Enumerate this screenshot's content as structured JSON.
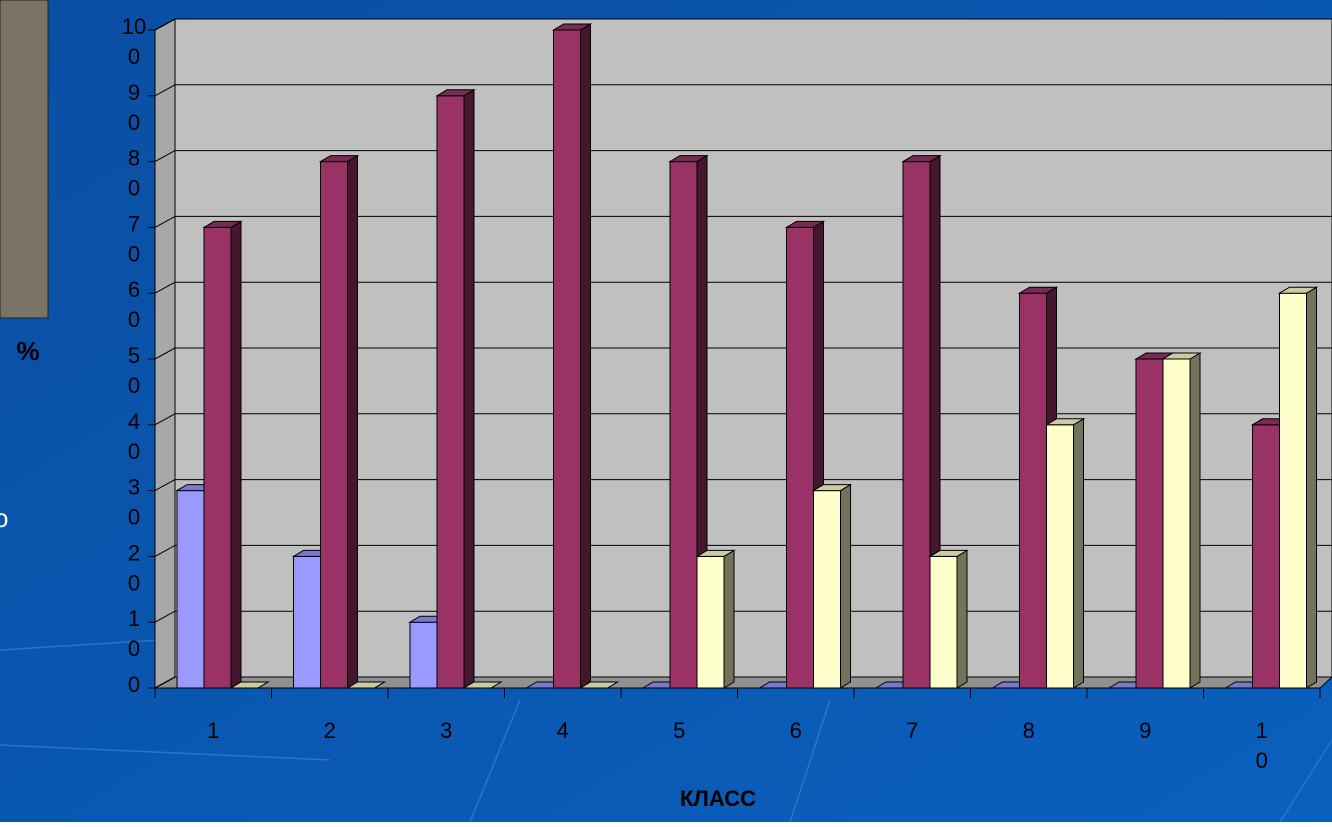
{
  "chart_data": {
    "type": "bar3d",
    "x_label": "КЛАСС",
    "y_label": "%",
    "side_fragment": "о",
    "categories": [
      "1",
      "2",
      "3",
      "4",
      "5",
      "6",
      "7",
      "8",
      "9",
      "10"
    ],
    "series": [
      {
        "color": "#9999ff",
        "values": [
          30,
          20,
          10,
          0,
          0,
          0,
          0,
          0,
          0,
          0
        ]
      },
      {
        "color": "#993366",
        "values": [
          70,
          80,
          90,
          100,
          80,
          70,
          80,
          60,
          50,
          40
        ]
      },
      {
        "color": "#ffffcc",
        "values": [
          0,
          0,
          0,
          0,
          20,
          30,
          20,
          40,
          50,
          60
        ]
      }
    ],
    "ylim": [
      0,
      100
    ],
    "yticks": [
      0,
      10,
      20,
      30,
      40,
      50,
      60,
      70,
      80,
      90,
      100
    ],
    "grid": true
  }
}
